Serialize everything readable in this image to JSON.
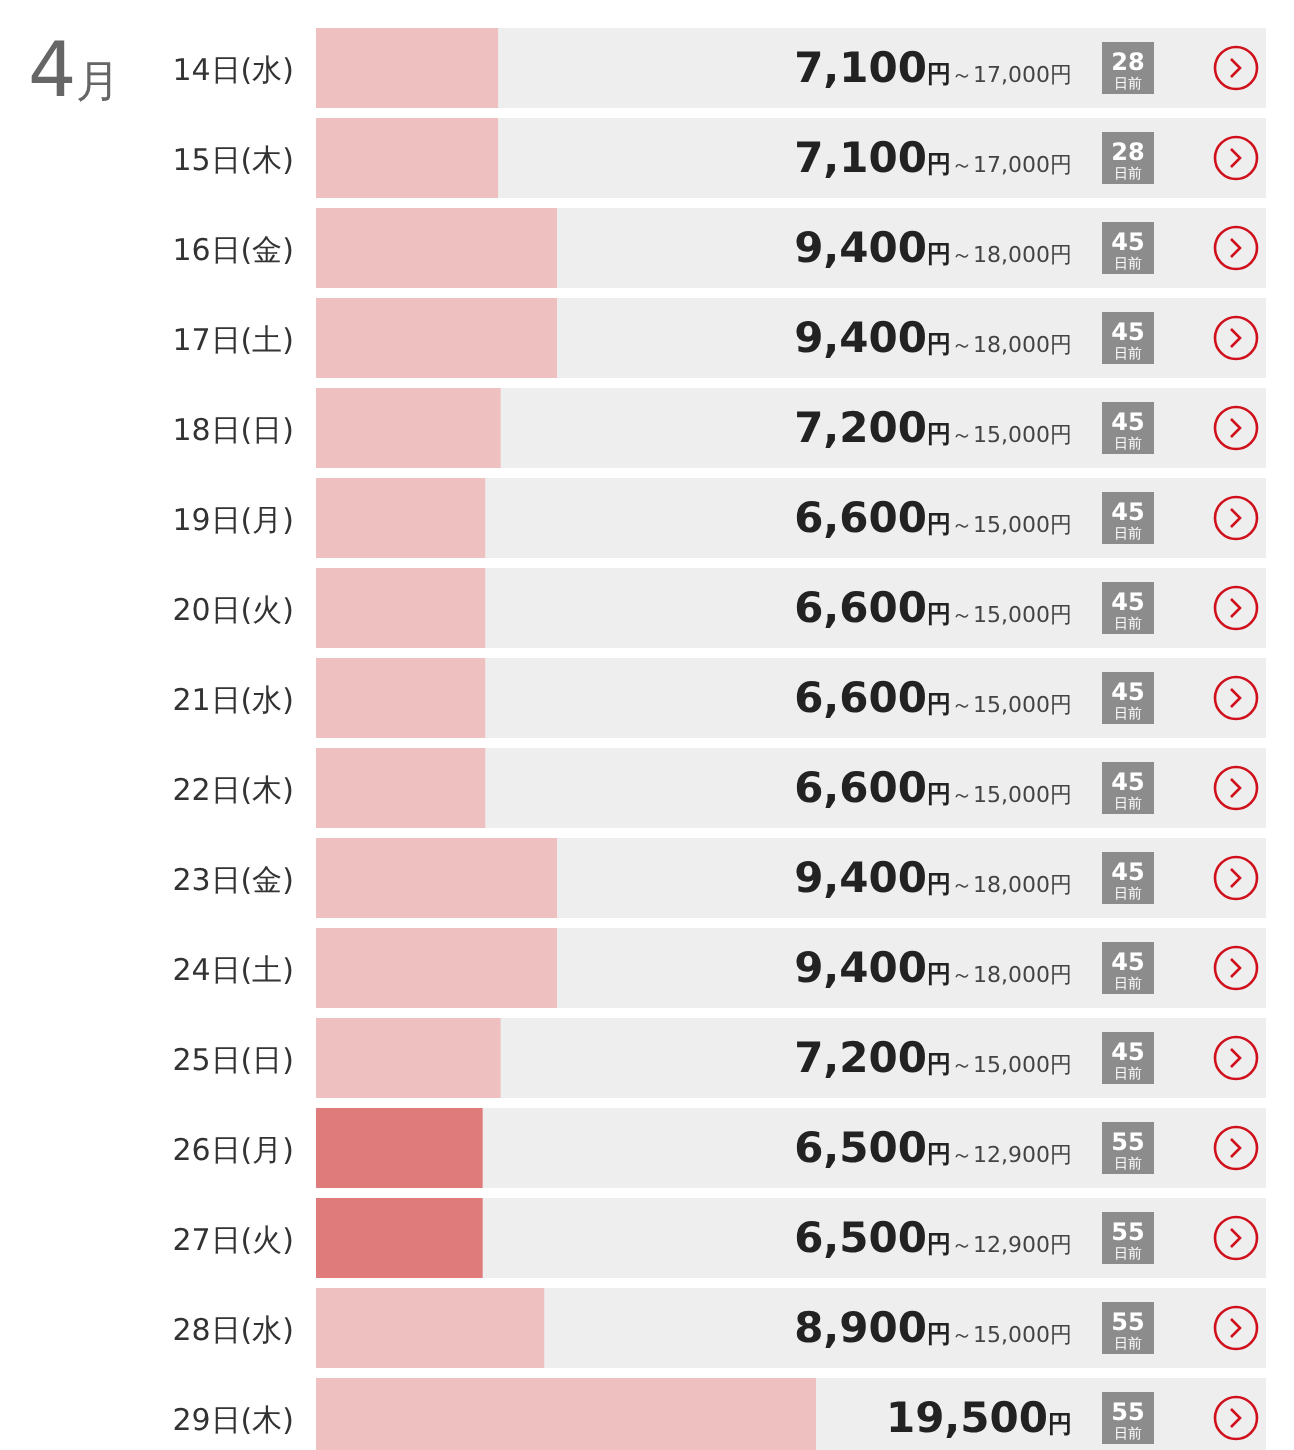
{
  "chart_data": {
    "type": "bar",
    "orientation": "horizontal",
    "title": "4月",
    "categories": [
      "14日(水)",
      "15日(木)",
      "16日(金)",
      "17日(土)",
      "18日(日)",
      "19日(月)",
      "20日(火)",
      "21日(水)",
      "22日(木)",
      "23日(金)",
      "24日(土)",
      "25日(日)",
      "26日(月)",
      "27日(火)",
      "28日(水)",
      "29日(木)"
    ],
    "values": [
      7100,
      7100,
      9400,
      9400,
      7200,
      6600,
      6600,
      6600,
      6600,
      9400,
      9400,
      7200,
      6500,
      6500,
      8900,
      19500
    ],
    "colors": [
      "#efc0c0",
      "#efc0c0",
      "#efc0c0",
      "#efc0c0",
      "#efc0c0",
      "#efc0c0",
      "#efc0c0",
      "#efc0c0",
      "#efc0c0",
      "#efc0c0",
      "#efc0c0",
      "#efc0c0",
      "#e07b7b",
      "#e07b7b",
      "#efc0c0",
      "#efc0c0"
    ],
    "value_labels": [
      "7,100円～17,000円",
      "7,100円～17,000円",
      "9,400円～18,000円",
      "9,400円～18,000円",
      "7,200円～15,000円",
      "6,600円～15,000円",
      "6,600円～15,000円",
      "6,600円～15,000円",
      "6,600円～15,000円",
      "9,400円～18,000円",
      "9,400円～18,000円",
      "7,200円～15,000円",
      "6,500円～12,900円",
      "6,500円～12,900円",
      "8,900円～15,000円",
      "19,500円"
    ],
    "annotations": [
      "28日前",
      "28日前",
      "45日前",
      "45日前",
      "45日前",
      "45日前",
      "45日前",
      "45日前",
      "45日前",
      "45日前",
      "45日前",
      "45日前",
      "55日前",
      "55日前",
      "55日前",
      "55日前"
    ]
  }
}
